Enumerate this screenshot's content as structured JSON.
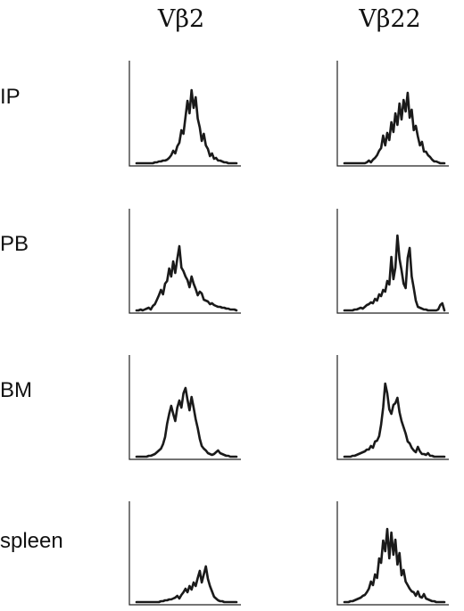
{
  "chart_data": {
    "type": "line",
    "columns": [
      "Vβ2",
      "Vβ22"
    ],
    "rows": [
      "IP",
      "PB",
      "BM",
      "spleen"
    ],
    "panels": [
      {
        "row": "IP",
        "column": "Vβ2",
        "values": [
          0,
          0,
          0,
          0,
          0,
          0,
          0,
          0,
          0,
          1,
          1,
          2,
          2,
          3,
          3,
          4,
          6,
          9,
          14,
          11,
          19,
          23,
          37,
          33,
          52,
          70,
          56,
          82,
          62,
          74,
          50,
          40,
          25,
          33,
          20,
          16,
          8,
          11,
          5,
          6,
          3,
          3,
          2,
          1,
          1,
          0,
          0,
          0,
          0,
          0
        ]
      },
      {
        "row": "IP",
        "column": "Vβ22",
        "values": [
          0,
          0,
          0,
          0,
          0,
          0,
          0,
          0,
          0,
          0,
          0,
          1,
          3,
          1,
          4,
          6,
          9,
          14,
          17,
          31,
          20,
          34,
          26,
          46,
          35,
          56,
          43,
          67,
          49,
          71,
          58,
          79,
          51,
          60,
          37,
          42,
          30,
          20,
          24,
          13,
          13,
          9,
          7,
          4,
          2,
          2,
          1,
          0,
          0,
          0
        ]
      },
      {
        "row": "PB",
        "column": "Vβ2",
        "values": [
          0,
          0,
          1,
          0,
          1,
          2,
          3,
          1,
          5,
          7,
          12,
          17,
          23,
          18,
          30,
          33,
          47,
          38,
          55,
          42,
          58,
          72,
          48,
          44,
          38,
          34,
          26,
          38,
          30,
          24,
          17,
          21,
          19,
          12,
          11,
          10,
          7,
          8,
          6,
          5,
          4,
          4,
          3,
          3,
          2,
          2,
          1,
          1,
          1,
          0
        ]
      },
      {
        "row": "PB",
        "column": "Vβ22",
        "values": [
          0,
          0,
          0,
          0,
          0,
          1,
          1,
          2,
          3,
          2,
          4,
          6,
          7,
          9,
          8,
          13,
          11,
          18,
          16,
          23,
          21,
          33,
          29,
          60,
          35,
          48,
          84,
          58,
          45,
          30,
          25,
          59,
          70,
          38,
          25,
          11,
          4,
          3,
          2,
          1,
          1,
          0,
          0,
          0,
          0,
          0,
          1,
          6,
          8,
          0
        ]
      },
      {
        "row": "BM",
        "column": "Vβ2",
        "values": [
          0,
          0,
          0,
          0,
          0,
          0,
          1,
          1,
          2,
          3,
          5,
          7,
          9,
          14,
          22,
          37,
          48,
          57,
          48,
          40,
          55,
          63,
          55,
          71,
          77,
          64,
          52,
          67,
          55,
          42,
          32,
          20,
          12,
          9,
          7,
          4,
          3,
          2,
          3,
          5,
          7,
          4,
          3,
          2,
          1,
          1,
          0,
          0,
          0,
          0
        ]
      },
      {
        "row": "BM",
        "column": "Vβ22",
        "values": [
          0,
          0,
          0,
          0,
          1,
          1,
          2,
          3,
          4,
          5,
          6,
          8,
          8,
          12,
          10,
          17,
          18,
          23,
          36,
          55,
          82,
          71,
          53,
          48,
          58,
          60,
          66,
          50,
          40,
          33,
          26,
          17,
          15,
          10,
          7,
          5,
          11,
          6,
          3,
          3,
          2,
          4,
          1,
          1,
          0,
          0,
          0,
          0,
          0,
          0
        ]
      },
      {
        "row": "spleen",
        "column": "Vβ2",
        "values": [
          0,
          0,
          0,
          0,
          0,
          0,
          0,
          0,
          0,
          0,
          0,
          0,
          1,
          1,
          2,
          2,
          3,
          3,
          4,
          5,
          7,
          4,
          8,
          11,
          15,
          11,
          18,
          14,
          22,
          18,
          27,
          35,
          22,
          31,
          40,
          26,
          18,
          12,
          6,
          4,
          2,
          1,
          1,
          0,
          0,
          0,
          0,
          0,
          0,
          0
        ]
      },
      {
        "row": "spleen",
        "column": "Vβ22",
        "values": [
          0,
          0,
          0,
          1,
          1,
          2,
          3,
          4,
          5,
          7,
          8,
          11,
          15,
          23,
          19,
          31,
          27,
          49,
          44,
          69,
          57,
          82,
          49,
          78,
          53,
          70,
          42,
          55,
          30,
          36,
          23,
          19,
          15,
          12,
          11,
          7,
          12,
          6,
          5,
          9,
          4,
          3,
          2,
          1,
          1,
          0,
          0,
          0,
          0,
          0
        ]
      }
    ]
  }
}
